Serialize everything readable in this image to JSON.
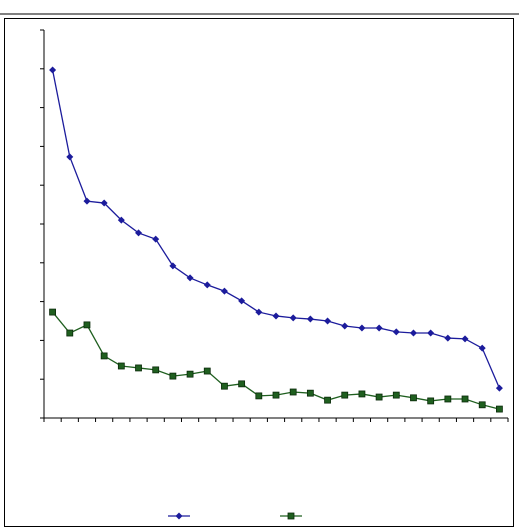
{
  "chart_data": {
    "type": "line",
    "categories": [
      null,
      null,
      null,
      null,
      null,
      null,
      null,
      null,
      null,
      null,
      null,
      null,
      null,
      null,
      null,
      null,
      null,
      null,
      null,
      null,
      null,
      null,
      null,
      null,
      null,
      null,
      null
    ],
    "series": [
      {
        "color": "#1c1c9c",
        "marker": "diamond",
        "values": [
          8.97,
          6.73,
          5.59,
          5.54,
          5.1,
          4.77,
          4.61,
          3.92,
          3.61,
          3.43,
          3.27,
          3.02,
          2.73,
          2.63,
          2.58,
          2.55,
          2.5,
          2.37,
          2.32,
          2.32,
          2.22,
          2.19,
          2.19,
          2.06,
          2.04,
          1.8,
          0.77
        ]
      },
      {
        "color": "#1f5f1f",
        "marker": "square",
        "values": [
          2.73,
          2.19,
          2.4,
          1.6,
          1.34,
          1.29,
          1.24,
          1.08,
          1.13,
          1.21,
          0.82,
          0.88,
          0.57,
          0.59,
          0.67,
          0.64,
          0.46,
          0.59,
          0.62,
          0.54,
          0.59,
          0.52,
          0.44,
          0.49,
          0.49,
          0.34,
          0.23
        ]
      }
    ],
    "ylim": [
      0,
      10
    ],
    "yticks": [
      0,
      1,
      2,
      3,
      4,
      5,
      6,
      7,
      8,
      9,
      10
    ],
    "grid": false,
    "legend": "bottom"
  }
}
